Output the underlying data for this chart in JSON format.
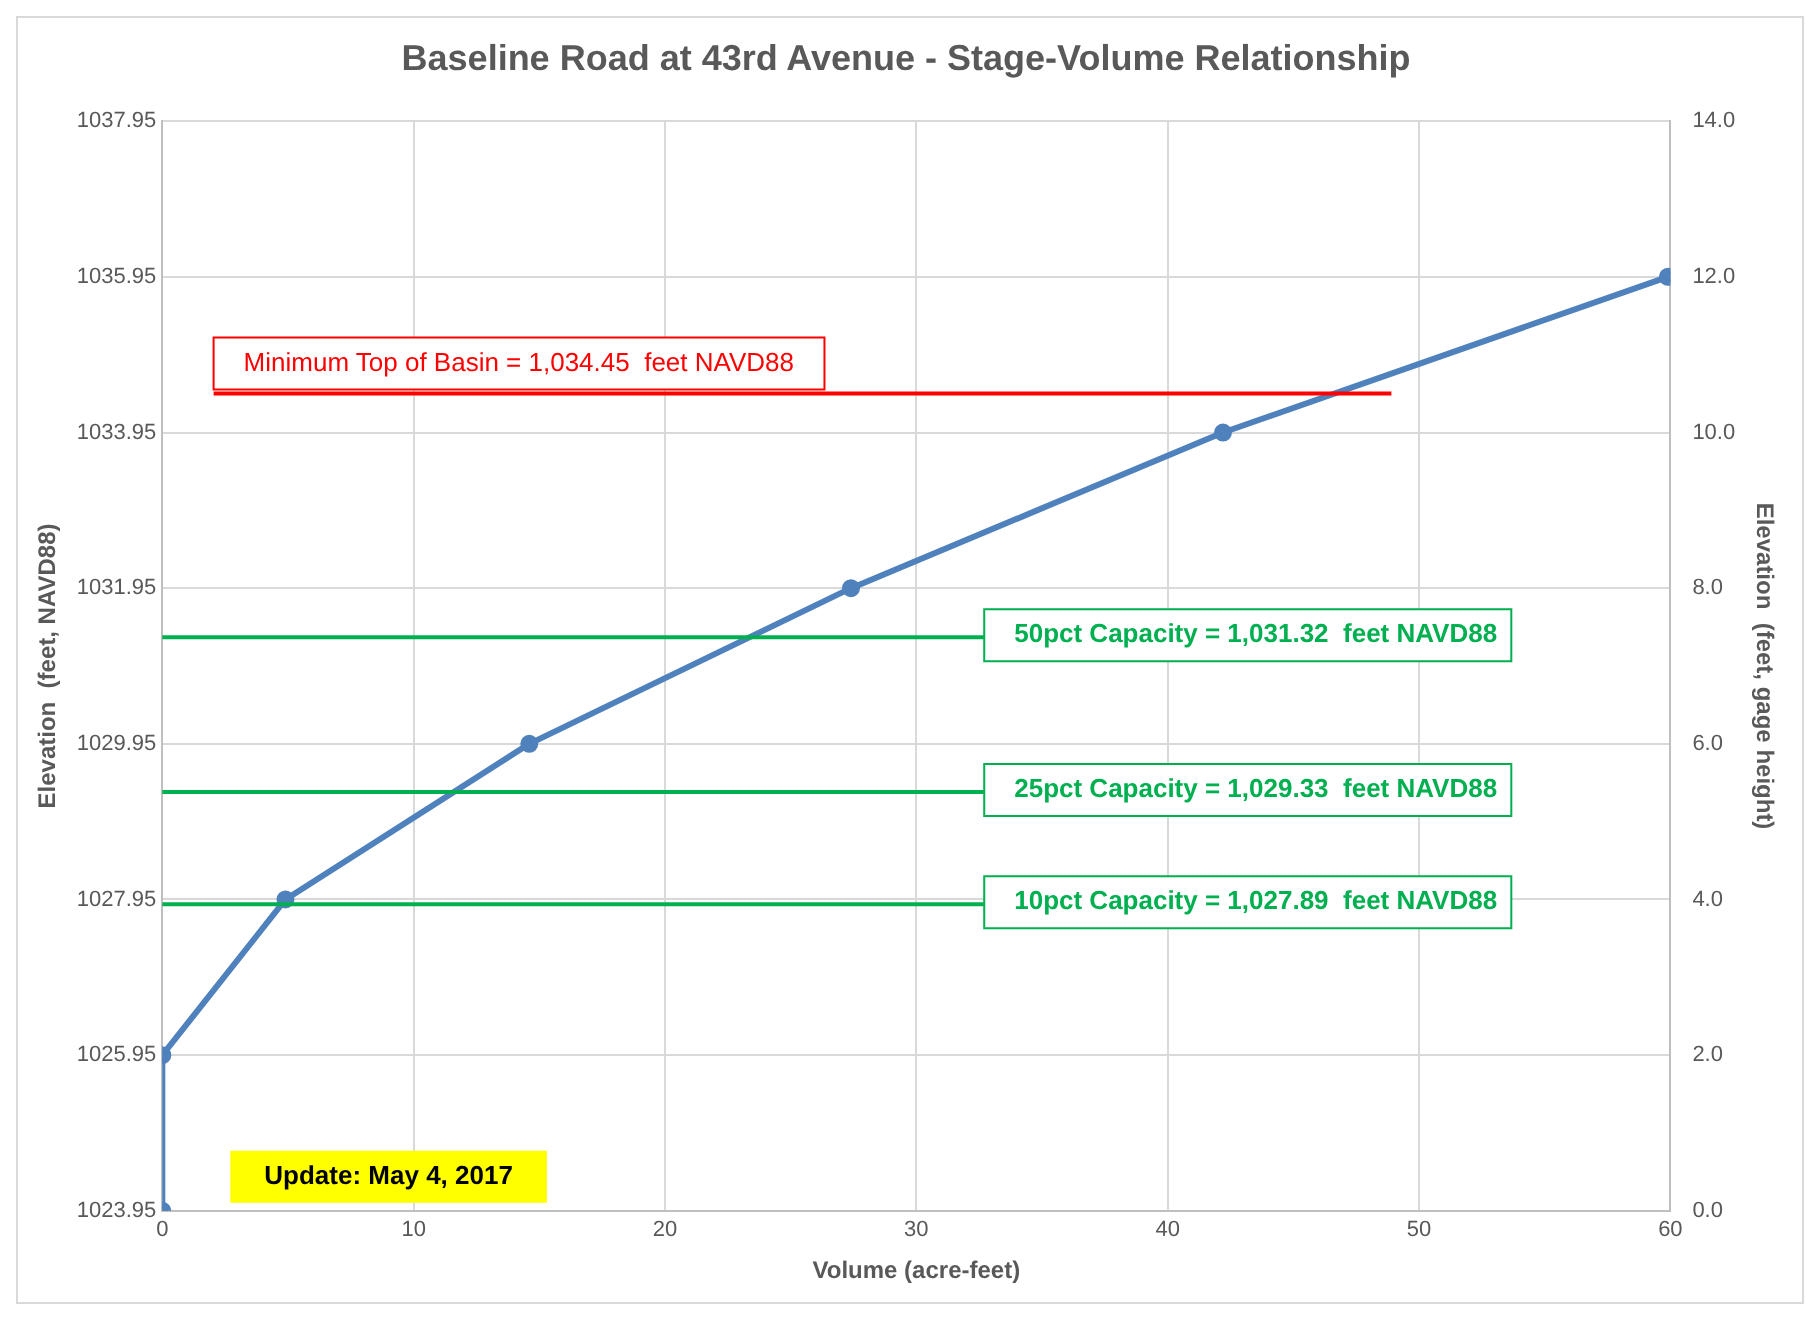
{
  "chart_data": {
    "type": "line",
    "title": "Baseline Road at 43rd Avenue - Stage-Volume Relationship",
    "xlabel": "Volume (acre-feet)",
    "ylabel": "Elevation  (feet, NAVD88)",
    "y2label": "Elevation  (feet, gage height)",
    "series": [
      {
        "color": "#4f81bd",
        "x": [
          0,
          0,
          4.9,
          14.6,
          27.4,
          42.2,
          59.9
        ],
        "values": [
          1023.95,
          1025.95,
          1027.95,
          1029.95,
          1031.95,
          1033.95,
          1035.95
        ]
      }
    ],
    "xlim": [
      0,
      60
    ],
    "xticks": [
      0,
      10,
      20,
      30,
      40,
      50,
      60
    ],
    "ylim": [
      1023.95,
      1037.95
    ],
    "yticks": [
      1023.95,
      1025.95,
      1027.95,
      1029.95,
      1031.95,
      1033.95,
      1035.95,
      1037.95
    ],
    "y2lim": [
      0,
      14
    ],
    "y2ticks": [
      {
        "value": 0,
        "label": "0.0"
      },
      {
        "value": 2,
        "label": "2.0"
      },
      {
        "value": 4,
        "label": "4.0"
      },
      {
        "value": 6,
        "label": "6.0"
      },
      {
        "value": 8,
        "label": "8.0"
      },
      {
        "value": 10,
        "label": "10.0"
      },
      {
        "value": 12,
        "label": "12.0"
      },
      {
        "value": 14,
        "label": "14.0"
      }
    ],
    "ref_lines": [
      {
        "axis": "y",
        "value": 1034.45,
        "label": "Minimum Top of Basin = 1,034.45  feet NAVD88",
        "color": "#ff0000"
      },
      {
        "axis": "y",
        "value": 1031.32,
        "label": "50pct Capacity = 1,031.32  feet NAVD88",
        "color": "#00b050"
      },
      {
        "axis": "y",
        "value": 1029.33,
        "label": "25pct Capacity = 1,029.33  feet NAVD88",
        "color": "#00b050"
      },
      {
        "axis": "y",
        "value": 1027.89,
        "label": "10pct Capacity = 1,027.89  feet NAVD88",
        "color": "#00b050"
      }
    ],
    "annotations": [
      "Update: May 4, 2017"
    ],
    "grid": true,
    "marker": "circle",
    "line_style": "solid",
    "legend": false
  }
}
